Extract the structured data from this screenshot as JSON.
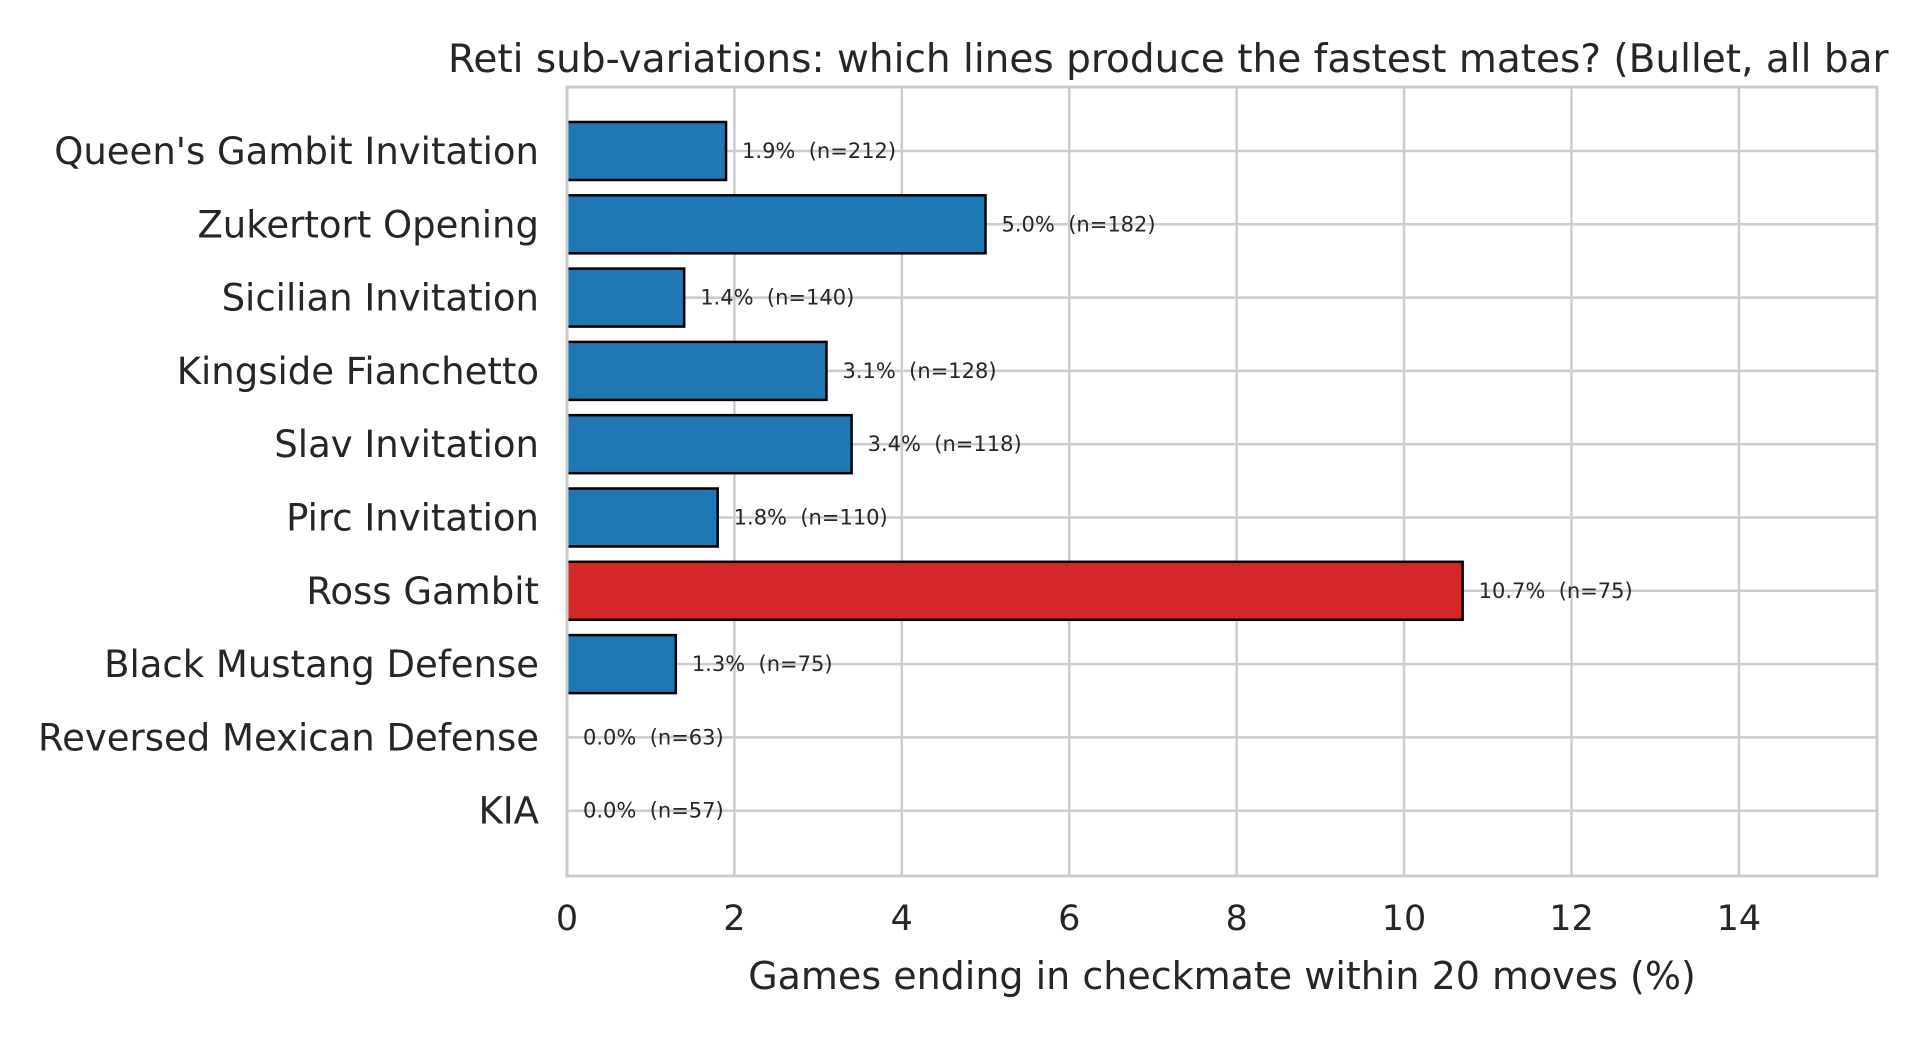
{
  "chart_data": {
    "type": "bar",
    "orientation": "horizontal",
    "title": "Reti sub-variations: which lines produce the fastest mates? (Bullet, all bar",
    "xlabel": "Games ending in checkmate within 20 moves (%)",
    "ylabel": "",
    "xlim": [
      0,
      15.65
    ],
    "xticks": [
      "0",
      "2",
      "4",
      "6",
      "8",
      "10",
      "12",
      "14"
    ],
    "grid": true,
    "categories": [
      "Queen's Gambit Invitation",
      "Zukertort Opening",
      "Sicilian Invitation",
      "Kingside Fianchetto",
      "Slav Invitation",
      "Pirc Invitation",
      "Ross Gambit",
      "Black Mustang Defense",
      "Reversed Mexican Defense",
      "KIA"
    ],
    "values": [
      1.9,
      5.0,
      1.4,
      3.1,
      3.4,
      1.8,
      10.7,
      1.3,
      0.0,
      0.0
    ],
    "data_labels": [
      "1.9%  (n=212)",
      "5.0%  (n=182)",
      "1.4%  (n=140)",
      "3.1%  (n=128)",
      "3.4%  (n=118)",
      "1.8%  (n=110)",
      "10.7%  (n=75)",
      "1.3%  (n=75)",
      "0.0%  (n=63)",
      "0.0%  (n=57)"
    ],
    "colors": [
      "#1f77b4",
      "#1f77b4",
      "#1f77b4",
      "#1f77b4",
      "#1f77b4",
      "#1f77b4",
      "#d62728",
      "#1f77b4",
      "#1f77b4",
      "#1f77b4"
    ],
    "grid_color": "#cccccc",
    "text_color": "#262626"
  }
}
